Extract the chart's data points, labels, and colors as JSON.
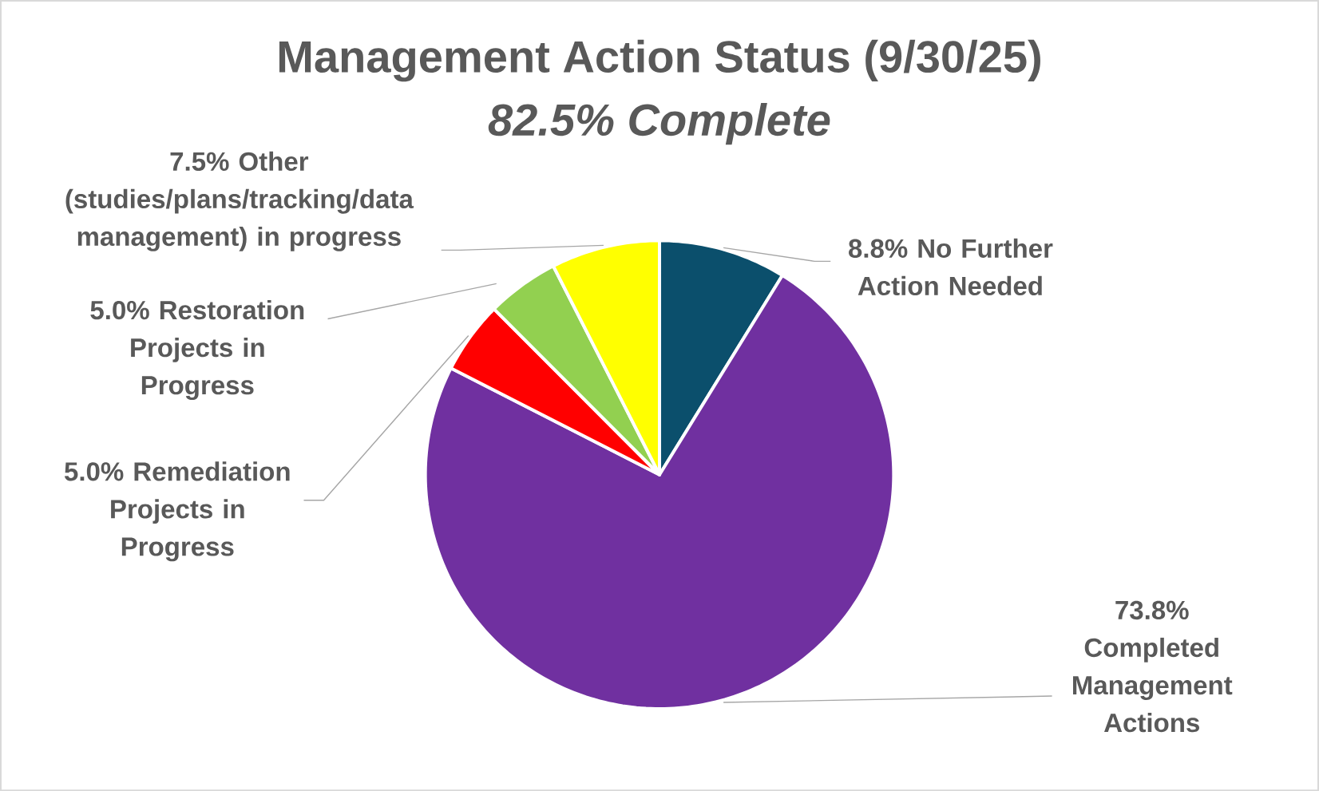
{
  "chart_data": {
    "type": "pie",
    "title": "Management Action Status (9/30/25)",
    "subtitle": "82.5% Complete",
    "categories": [
      "No Further Action Needed",
      "Completed Management Actions",
      "Remediation Projects in Progress",
      "Restoration Projects in Progress",
      "Other (studies/plans/tracking/data management) in progress"
    ],
    "values": [
      8.8,
      73.8,
      5.0,
      5.0,
      7.5
    ],
    "colors": [
      "#0b4f6c",
      "#7030a0",
      "#ff0000",
      "#92d050",
      "#ffff00"
    ],
    "value_labels": [
      "8.8%",
      "73.8%",
      "5.0%",
      "5.0%",
      "7.5%"
    ]
  }
}
